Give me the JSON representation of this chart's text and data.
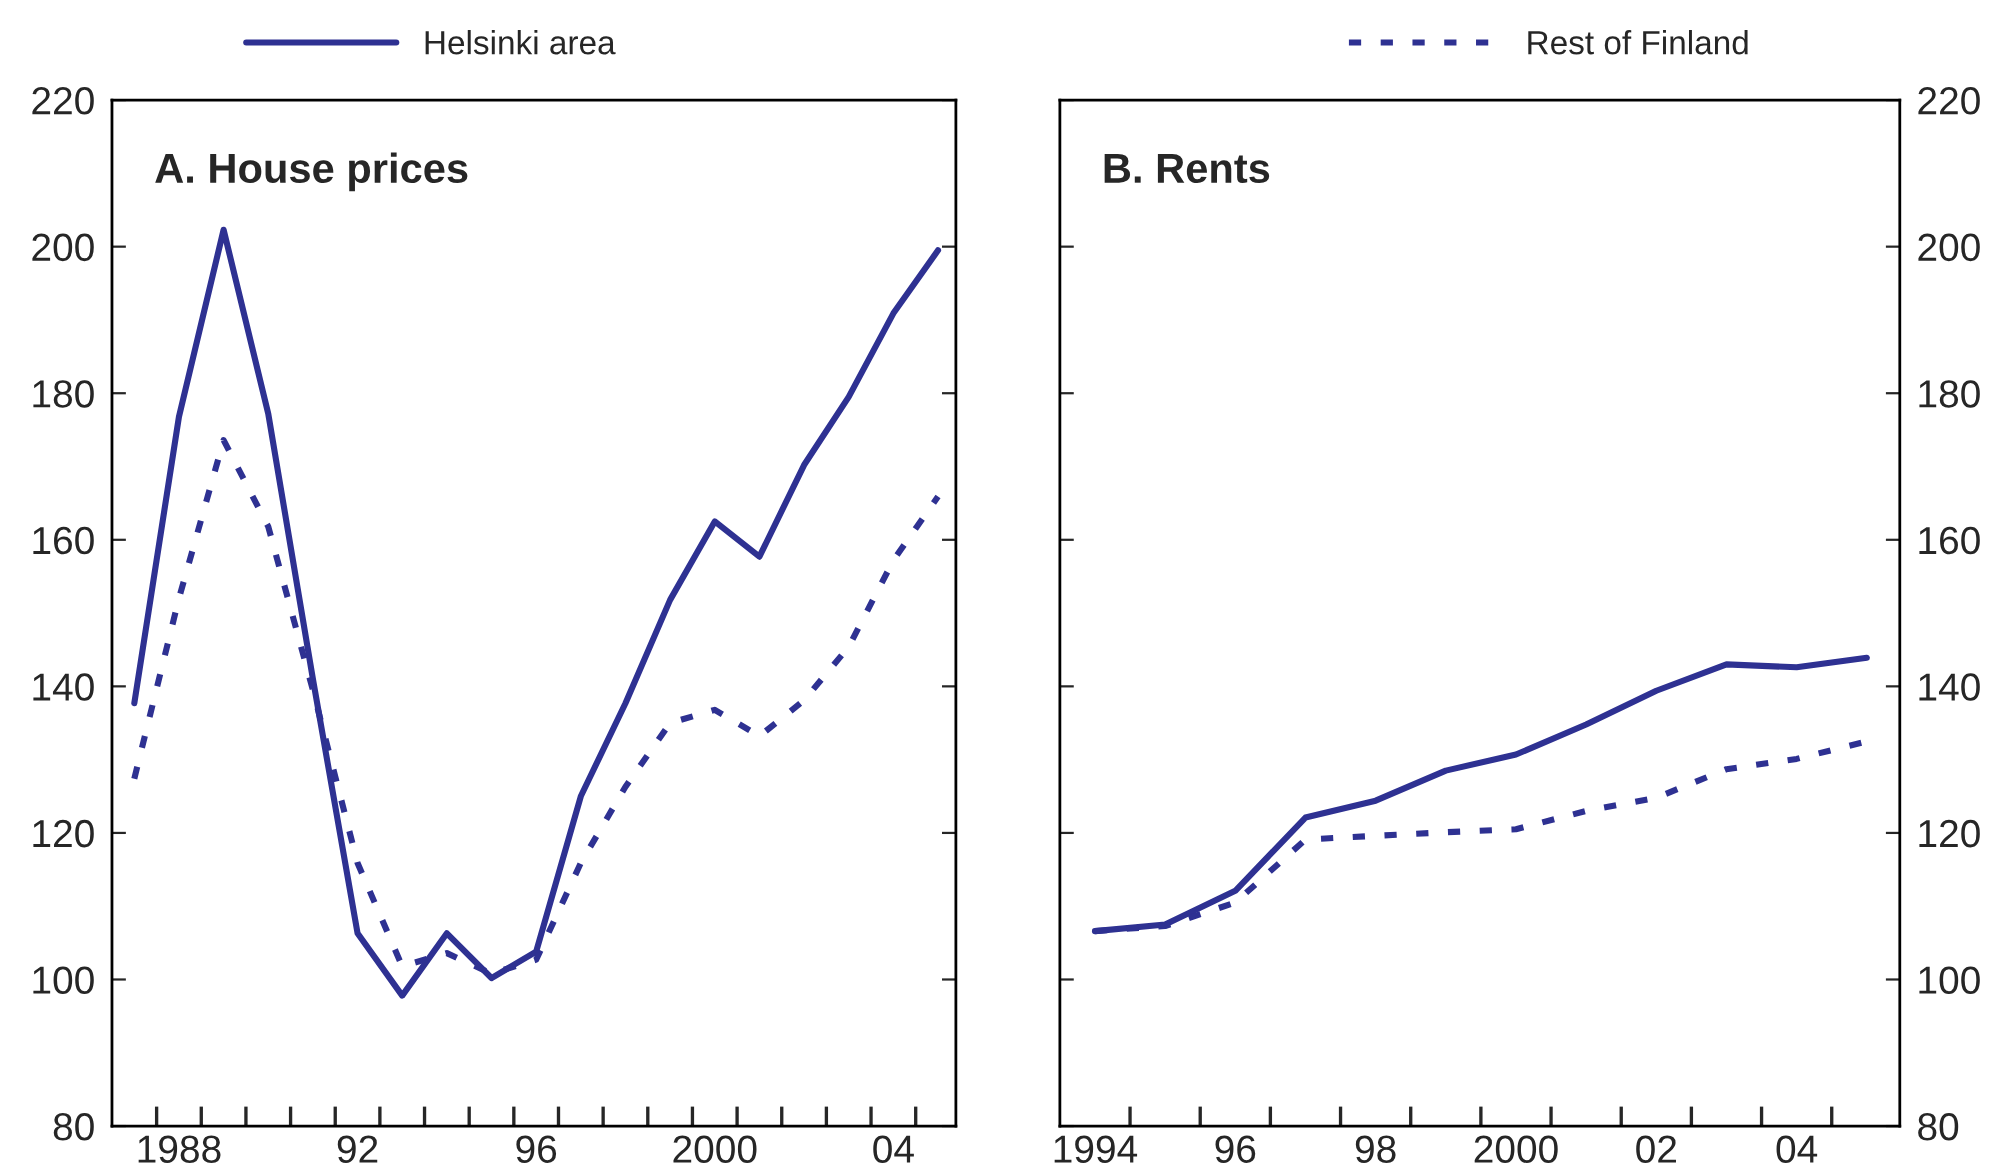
{
  "chart_data": [
    {
      "type": "line",
      "title": "A. House prices",
      "legend": "top",
      "grid": false,
      "x": [
        1987,
        1988,
        1989,
        1990,
        1991,
        1992,
        1993,
        1994,
        1995,
        1996,
        1997,
        1998,
        1999,
        2000,
        2001,
        2002,
        2003,
        2004,
        2005
      ],
      "series": [
        {
          "name": "Helsinki area",
          "color": "#2e3192",
          "line_style": "solid",
          "values": [
            137.7,
            176.8,
            202.3,
            177.2,
            141,
            106.3,
            97.8,
            106.3,
            100.2,
            103.8,
            125.0,
            137.7,
            151.8,
            162.5,
            157.7,
            170.2,
            179.5,
            190.9,
            199.5
          ]
        },
        {
          "name": "Rest of Finland",
          "color": "#2e3192",
          "line_style": "dotted",
          "values": [
            127.4,
            152,
            173.6,
            161.8,
            139.5,
            115.9,
            101.8,
            103.6,
            100.8,
            102.7,
            115.9,
            126.3,
            135,
            136.8,
            133.2,
            138.1,
            145.4,
            157.2,
            165.9
          ]
        }
      ],
      "xlim": [
        1986.5,
        2005.4
      ],
      "ylim": [
        80,
        220
      ],
      "xticks": [
        {
          "value": 1987.5,
          "label": null
        },
        {
          "value": 1988,
          "label": "1988"
        },
        {
          "value": 1988.5,
          "label": null
        },
        {
          "value": 1989.5,
          "label": null
        },
        {
          "value": 1990.5,
          "label": null
        },
        {
          "value": 1991.5,
          "label": null
        },
        {
          "value": 1992,
          "label": "92"
        },
        {
          "value": 1992.5,
          "label": null
        },
        {
          "value": 1993.5,
          "label": null
        },
        {
          "value": 1994.5,
          "label": null
        },
        {
          "value": 1995.5,
          "label": null
        },
        {
          "value": 1996,
          "label": "96"
        },
        {
          "value": 1996.5,
          "label": null
        },
        {
          "value": 1997.5,
          "label": null
        },
        {
          "value": 1998.5,
          "label": null
        },
        {
          "value": 1999.5,
          "label": null
        },
        {
          "value": 2000,
          "label": "2000"
        },
        {
          "value": 2000.5,
          "label": null
        },
        {
          "value": 2001.5,
          "label": null
        },
        {
          "value": 2002.5,
          "label": null
        },
        {
          "value": 2003.5,
          "label": null
        },
        {
          "value": 2004,
          "label": "04"
        },
        {
          "value": 2004.5,
          "label": null
        }
      ],
      "yticks": [
        80,
        100,
        120,
        140,
        160,
        180,
        200,
        220
      ]
    },
    {
      "type": "line",
      "title": "B. Rents",
      "grid": false,
      "x": [
        1994,
        1995,
        1996,
        1997,
        1998,
        1999,
        2000,
        2001,
        2002,
        2003,
        2004,
        2005
      ],
      "series": [
        {
          "name": "Helsinki area",
          "color": "#2e3192",
          "line_style": "solid",
          "values": [
            106.6,
            107.5,
            112.1,
            122.1,
            124.4,
            128.5,
            130.7,
            134.8,
            139.4,
            143.0,
            142.6,
            143.9
          ]
        },
        {
          "name": "Rest of Finland",
          "color": "#2e3192",
          "line_style": "dotted",
          "values": [
            106.6,
            107.3,
            110.5,
            119.1,
            119.6,
            120.1,
            120.5,
            123.0,
            124.8,
            128.7,
            130.1,
            132.5
          ]
        }
      ],
      "xlim": [
        1993.5,
        2005.47
      ],
      "ylim": [
        80,
        220
      ],
      "xticks": [
        {
          "value": 1994,
          "label": "1994"
        },
        {
          "value": 1994.5,
          "label": null
        },
        {
          "value": 1995.5,
          "label": null
        },
        {
          "value": 1996,
          "label": "96"
        },
        {
          "value": 1996.5,
          "label": null
        },
        {
          "value": 1997.5,
          "label": null
        },
        {
          "value": 1998,
          "label": "98"
        },
        {
          "value": 1998.5,
          "label": null
        },
        {
          "value": 1999.5,
          "label": null
        },
        {
          "value": 2000,
          "label": "2000"
        },
        {
          "value": 2000.5,
          "label": null
        },
        {
          "value": 2001.5,
          "label": null
        },
        {
          "value": 2002,
          "label": "02"
        },
        {
          "value": 2002.5,
          "label": null
        },
        {
          "value": 2003.5,
          "label": null
        },
        {
          "value": 2004,
          "label": "04"
        },
        {
          "value": 2004.5,
          "label": null
        }
      ],
      "yticks": [
        80,
        100,
        120,
        140,
        160,
        180,
        200,
        220
      ]
    }
  ]
}
